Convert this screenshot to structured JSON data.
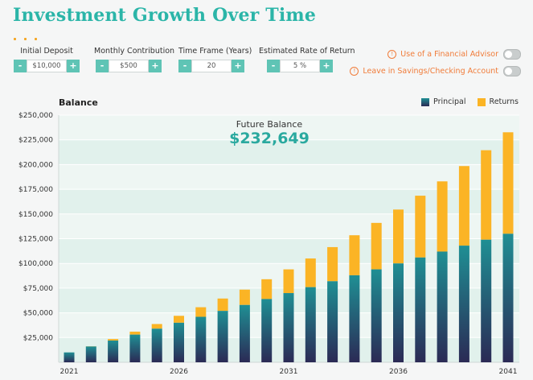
{
  "page": {
    "title": "Investment Growth Over Time"
  },
  "controls": [
    {
      "label": "Initial Deposit",
      "value": "$10,000"
    },
    {
      "label": "Monthly Contribution",
      "value": "$500"
    },
    {
      "label": "Time Frame (Years)",
      "value": "20"
    },
    {
      "label": "Estimated Rate of Return",
      "value": "5",
      "unit": "%"
    }
  ],
  "stepper_symbols": {
    "minus": "-",
    "plus": "+"
  },
  "toggles": [
    {
      "label": "Use of a Financial Advisor",
      "on": false
    },
    {
      "label": "Leave in Savings/Checking Account",
      "on": false
    }
  ],
  "future_balance": {
    "label": "Future Balance",
    "value": "$232,649"
  },
  "colors": {
    "accent": "#2bb5a8",
    "warning": "#f07c3a",
    "principal_top": "#1f8f94",
    "principal_bottom": "#2b2a55",
    "returns": "#fbb425"
  },
  "chart_data": {
    "type": "bar",
    "stacked": true,
    "title": "Balance",
    "x": [
      2021,
      2022,
      2023,
      2024,
      2025,
      2026,
      2027,
      2028,
      2029,
      2030,
      2031,
      2032,
      2033,
      2034,
      2035,
      2036,
      2037,
      2038,
      2039,
      2040,
      2041
    ],
    "xtick_labels": [
      "2021",
      "2026",
      "2031",
      "2036",
      "2041"
    ],
    "ylim": [
      0,
      250000
    ],
    "yticks": [
      25000,
      50000,
      75000,
      100000,
      125000,
      150000,
      175000,
      200000,
      225000,
      250000
    ],
    "ytick_labels": [
      "$25,000",
      "$50,000",
      "$75,000",
      "$100,000",
      "$125,000",
      "$150,000",
      "$175,000",
      "$200,000",
      "$225,000",
      "$250,000"
    ],
    "series": [
      {
        "name": "Principal",
        "values": [
          10000,
          16000,
          22000,
          28000,
          34000,
          40000,
          46000,
          52000,
          58000,
          64000,
          70000,
          76000,
          82000,
          88000,
          94000,
          100000,
          106000,
          112000,
          118000,
          124000,
          130000
        ]
      },
      {
        "name": "Returns",
        "values": [
          0,
          200,
          1500,
          3000,
          4700,
          7000,
          9700,
          12500,
          15500,
          20000,
          24000,
          29000,
          34500,
          40500,
          47000,
          54500,
          62500,
          71000,
          80500,
          90500,
          102649
        ]
      }
    ],
    "legend_position": "top-right",
    "grid": true
  }
}
